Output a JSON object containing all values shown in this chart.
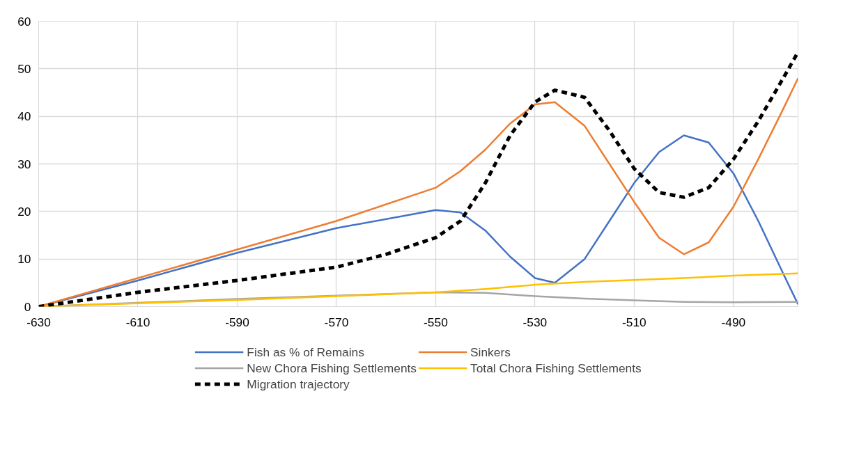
{
  "chart_data": {
    "type": "line",
    "series": [
      {
        "name": "Fish as % of Remains",
        "color": "#4472c4",
        "x": [
          -630,
          -610,
          -590,
          -570,
          -550,
          -545,
          -540,
          -535,
          -530,
          -526,
          -520,
          -515,
          -510,
          -505,
          -500,
          -495,
          -490,
          -485,
          -480,
          -477
        ],
        "values": [
          0,
          5.5,
          11.3,
          16.5,
          20.3,
          19.8,
          16,
          10.5,
          6,
          5,
          10,
          18,
          26,
          32.5,
          36,
          34.5,
          28,
          18,
          7,
          0.5
        ]
      },
      {
        "name": "Sinkers",
        "color": "#ed7d31",
        "x": [
          -630,
          -610,
          -590,
          -570,
          -550,
          -545,
          -540,
          -535,
          -530,
          -526,
          -520,
          -515,
          -510,
          -505,
          -500,
          -495,
          -490,
          -485,
          -480,
          -477
        ],
        "values": [
          0,
          6,
          12,
          18,
          25,
          28.5,
          33,
          38.5,
          42.5,
          43,
          38,
          30,
          22,
          14.5,
          11,
          13.5,
          21,
          31,
          41.5,
          48
        ]
      },
      {
        "name": "New Chora Fishing Settlements",
        "color": "#a5a5a5",
        "x": [
          -630,
          -610,
          -590,
          -570,
          -550,
          -540,
          -530,
          -520,
          -510,
          -500,
          -490,
          -477
        ],
        "values": [
          0,
          0.8,
          1.6,
          2.3,
          3,
          2.9,
          2.2,
          1.7,
          1.3,
          1,
          0.9,
          1
        ]
      },
      {
        "name": "Total Chora Fishing Settlements",
        "color": "#ffc000",
        "x": [
          -630,
          -610,
          -590,
          -570,
          -550,
          -540,
          -530,
          -520,
          -510,
          -500,
          -490,
          -477
        ],
        "values": [
          0,
          0.7,
          1.4,
          2.2,
          3,
          3.7,
          4.6,
          5.2,
          5.6,
          6,
          6.5,
          7
        ]
      },
      {
        "name": "Migration trajectory",
        "color": "#000000",
        "line_style": "dashed",
        "x": [
          -630,
          -610,
          -590,
          -570,
          -560,
          -550,
          -545,
          -540,
          -535,
          -530,
          -526,
          -520,
          -515,
          -510,
          -505,
          -500,
          -495,
          -490,
          -485,
          -480,
          -477
        ],
        "values": [
          0,
          3,
          5.5,
          8.3,
          11,
          14.5,
          18,
          26,
          36,
          43,
          45.5,
          44,
          37,
          29,
          24,
          23,
          25,
          31,
          39,
          48,
          53.5
        ]
      }
    ],
    "xlim": [
      -630,
      -477
    ],
    "xticks": [
      -630,
      -610,
      -590,
      -570,
      -550,
      -530,
      -510,
      -490
    ],
    "ylim": [
      0,
      60
    ],
    "yticks": [
      0,
      10,
      20,
      30,
      40,
      50,
      60
    ],
    "grid": true,
    "legend": "bottom",
    "marker": "none",
    "line_style": "solid"
  }
}
